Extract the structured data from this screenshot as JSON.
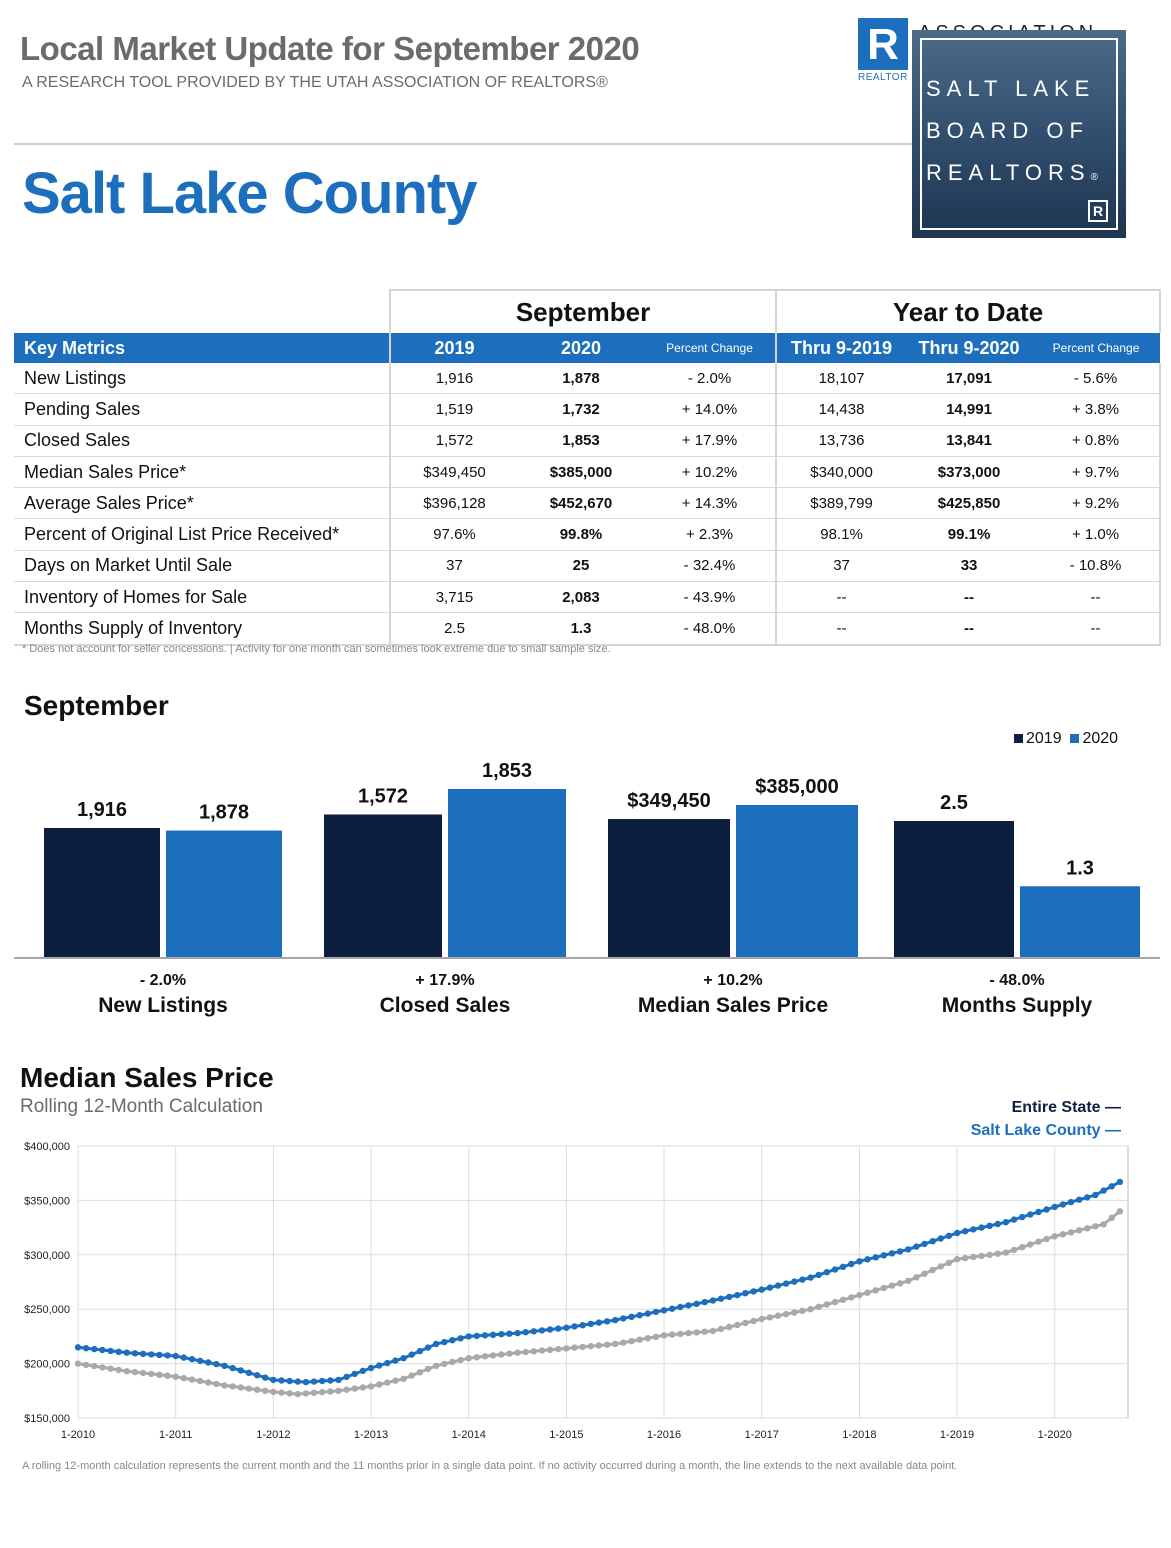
{
  "header": {
    "title": "Local Market Update for September 2020",
    "subtitle": "A RESEARCH TOOL PROVIDED BY THE UTAH ASSOCIATION OF REALTORS®",
    "area": "Salt Lake County"
  },
  "logo": {
    "r_mark": "R",
    "r_caption": "REALTOR",
    "association_text": "ASSOCIATION",
    "board_lines": [
      "SALT LAKE",
      "BOARD OF",
      "REALTORS"
    ],
    "board_trademark": "®",
    "board_r": "R"
  },
  "table": {
    "group_headers": {
      "september": "September",
      "ytd": "Year to Date"
    },
    "columns": {
      "metrics": "Key Metrics",
      "y2019": "2019",
      "y2020": "2020",
      "pct": "Percent Change",
      "thru2019": "Thru 9-2019",
      "thru2020": "Thru 9-2020",
      "pct_ytd": "Percent Change"
    },
    "rows": [
      {
        "label": "New Listings",
        "s2019": "1,916",
        "s2020": "1,878",
        "spct": "- 2.0%",
        "y2019": "18,107",
        "y2020": "17,091",
        "ypct": "- 5.6%"
      },
      {
        "label": "Pending Sales",
        "s2019": "1,519",
        "s2020": "1,732",
        "spct": "+ 14.0%",
        "y2019": "14,438",
        "y2020": "14,991",
        "ypct": "+ 3.8%"
      },
      {
        "label": "Closed Sales",
        "s2019": "1,572",
        "s2020": "1,853",
        "spct": "+ 17.9%",
        "y2019": "13,736",
        "y2020": "13,841",
        "ypct": "+ 0.8%"
      },
      {
        "label": "Median Sales Price*",
        "s2019": "$349,450",
        "s2020": "$385,000",
        "spct": "+ 10.2%",
        "y2019": "$340,000",
        "y2020": "$373,000",
        "ypct": "+ 9.7%"
      },
      {
        "label": "Average Sales Price*",
        "s2019": "$396,128",
        "s2020": "$452,670",
        "spct": "+ 14.3%",
        "y2019": "$389,799",
        "y2020": "$425,850",
        "ypct": "+ 9.2%"
      },
      {
        "label": "Percent of Original List Price Received*",
        "s2019": "97.6%",
        "s2020": "99.8%",
        "spct": "+ 2.3%",
        "y2019": "98.1%",
        "y2020": "99.1%",
        "ypct": "+ 1.0%"
      },
      {
        "label": "Days on Market Until Sale",
        "s2019": "37",
        "s2020": "25",
        "spct": "- 32.4%",
        "y2019": "37",
        "y2020": "33",
        "ypct": "- 10.8%"
      },
      {
        "label": "Inventory of Homes for Sale",
        "s2019": "3,715",
        "s2020": "2,083",
        "spct": "- 43.9%",
        "y2019": "--",
        "y2020": "--",
        "ypct": "--"
      },
      {
        "label": "Months Supply of Inventory",
        "s2019": "2.5",
        "s2020": "1.3",
        "spct": "- 48.0%",
        "y2019": "--",
        "y2020": "--",
        "ypct": "--"
      }
    ],
    "footnote": "* Does not account for seller concessions.  |  Activity for one month can sometimes look extreme due to small sample size."
  },
  "colors": {
    "blue": "#1d6fbd",
    "navy": "#0c1f3f",
    "grey_line": "#a9a9a9",
    "grid": "#dddddd"
  },
  "bar_section": {
    "title": "September",
    "legend": [
      "2019",
      "2020"
    ]
  },
  "line_section": {
    "title": "Median Sales Price",
    "subtitle": "Rolling 12-Month Calculation",
    "legend_state": "Entire State",
    "legend_county": "Salt Lake County",
    "legend_dash": "—",
    "footnote": "A rolling 12-month calculation represents the current month and the 11 months prior in a single data point. If no activity occurred during a month, the line extends to the next available data point."
  },
  "chart_data": [
    {
      "type": "bar",
      "title": "September",
      "groups": [
        {
          "name": "New Listings",
          "change": "- 2.0%",
          "values": [
            1916,
            1878
          ],
          "labels": [
            "1,916",
            "1,878"
          ]
        },
        {
          "name": "Closed Sales",
          "change": "+ 17.9%",
          "values": [
            1572,
            1853
          ],
          "labels": [
            "1,572",
            "1,853"
          ]
        },
        {
          "name": "Median Sales Price",
          "change": "+ 10.2%",
          "values": [
            349450,
            385000
          ],
          "labels": [
            "$349,450",
            "$385,000"
          ]
        },
        {
          "name": "Months Supply",
          "change": "- 48.0%",
          "values": [
            2.5,
            1.3
          ],
          "labels": [
            "2.5",
            "1.3"
          ]
        }
      ],
      "series": [
        "2019",
        "2020"
      ]
    },
    {
      "type": "line",
      "title": "Median Sales Price",
      "ylim": [
        150000,
        400000
      ],
      "yticks": [
        "$150,000",
        "$200,000",
        "$250,000",
        "$300,000",
        "$350,000",
        "$400,000"
      ],
      "xticks": [
        "1-2010",
        "1-2011",
        "1-2012",
        "1-2013",
        "1-2014",
        "1-2015",
        "1-2016",
        "1-2017",
        "1-2018",
        "1-2019",
        "1-2020"
      ],
      "x_start": "1-2010",
      "series": [
        {
          "name": "Entire State",
          "points": [
            [
              0,
              200000
            ],
            [
              6,
              193000
            ],
            [
              12,
              188000
            ],
            [
              18,
              180000
            ],
            [
              24,
              174000
            ],
            [
              27,
              172000
            ],
            [
              32,
              175000
            ],
            [
              36,
              179000
            ],
            [
              40,
              186000
            ],
            [
              44,
              198000
            ],
            [
              48,
              205000
            ],
            [
              54,
              210000
            ],
            [
              60,
              214000
            ],
            [
              66,
              218000
            ],
            [
              72,
              226000
            ],
            [
              78,
              230000
            ],
            [
              84,
              241000
            ],
            [
              90,
              250000
            ],
            [
              96,
              263000
            ],
            [
              102,
              276000
            ],
            [
              108,
              296000
            ],
            [
              114,
              302000
            ],
            [
              120,
              317000
            ],
            [
              126,
              328000
            ],
            [
              128,
              340000
            ]
          ]
        },
        {
          "name": "Salt Lake County",
          "points": [
            [
              0,
              215000
            ],
            [
              6,
              210000
            ],
            [
              12,
              207000
            ],
            [
              18,
              198000
            ],
            [
              24,
              185000
            ],
            [
              28,
              183000
            ],
            [
              32,
              185000
            ],
            [
              36,
              196000
            ],
            [
              40,
              205000
            ],
            [
              44,
              218000
            ],
            [
              48,
              225000
            ],
            [
              54,
              228000
            ],
            [
              60,
              233000
            ],
            [
              66,
              240000
            ],
            [
              72,
              249000
            ],
            [
              78,
              258000
            ],
            [
              84,
              268000
            ],
            [
              90,
              279000
            ],
            [
              96,
              294000
            ],
            [
              102,
              305000
            ],
            [
              108,
              320000
            ],
            [
              114,
              330000
            ],
            [
              120,
              344000
            ],
            [
              125,
              355000
            ],
            [
              128,
              367000
            ]
          ]
        }
      ]
    }
  ]
}
